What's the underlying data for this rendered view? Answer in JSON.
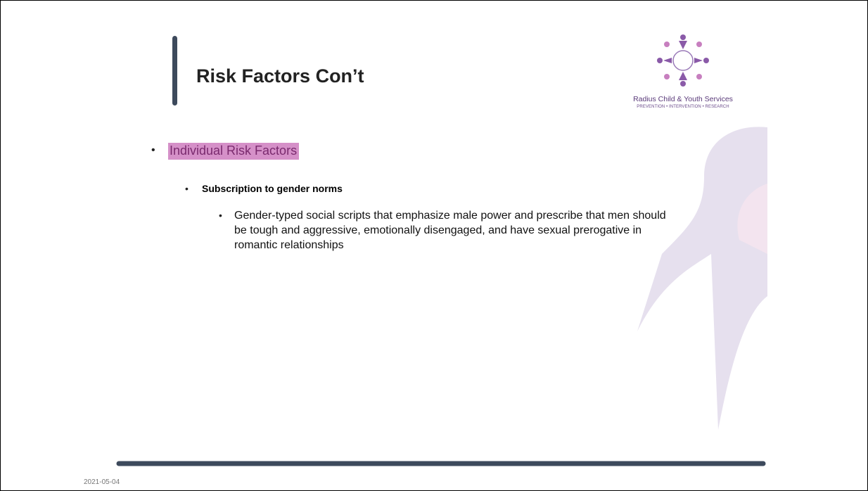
{
  "slide": {
    "title": "Risk Factors Con’t",
    "logo": {
      "name": "Radius Child & Youth Services",
      "tagline": "PREVENTION • INTERVENTION • RESEARCH"
    },
    "bullets": [
      {
        "text": "Individual Risk Factors"
      },
      {
        "text": "Subscription to gender norms"
      },
      {
        "text": "Gender-typed social scripts that emphasize male power and prescribe that men should be tough and aggressive, emotionally disengaged, and have sexual prerogative in romantic relationships"
      }
    ],
    "date": "2021-05-04"
  }
}
